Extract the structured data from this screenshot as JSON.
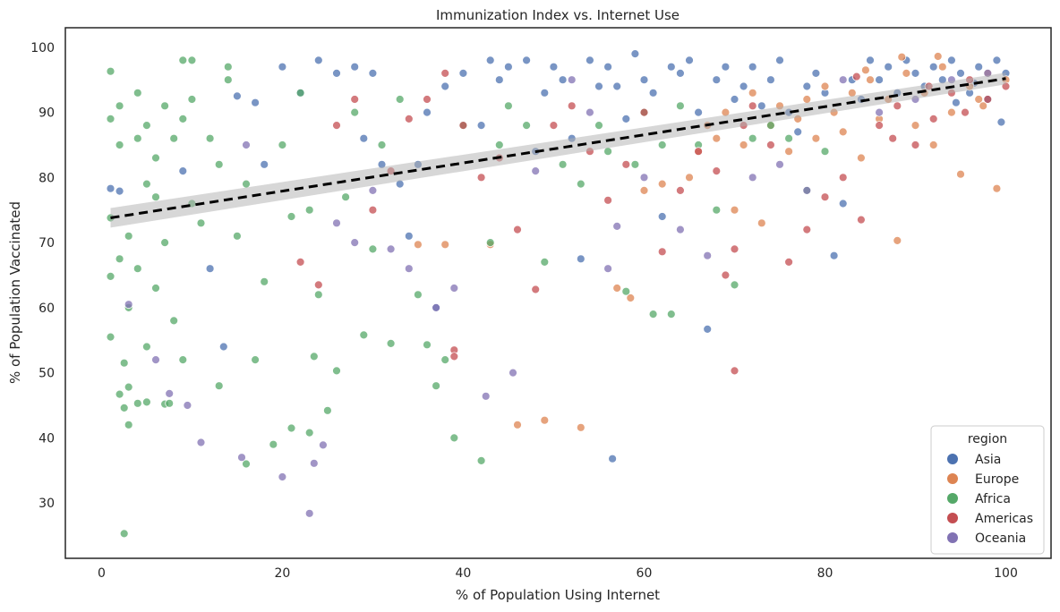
{
  "chart_data": {
    "type": "scatter",
    "title": "Immunization Index vs. Internet Use",
    "xlabel": "% of Population Using Internet",
    "ylabel": "% of Population Vaccinated",
    "xlim": [
      -4,
      105
    ],
    "ylim": [
      21.5,
      103
    ],
    "xticks": [
      0,
      20,
      40,
      60,
      80,
      100
    ],
    "yticks": [
      30,
      40,
      50,
      60,
      70,
      80,
      90,
      100
    ],
    "grid": false,
    "legend": {
      "title": "region",
      "placement": "lower-right"
    },
    "series": [
      {
        "name": "Asia",
        "color": "#4c72b0",
        "points": [
          [
            1,
            78.3
          ],
          [
            2,
            77.9
          ],
          [
            9,
            81
          ],
          [
            12,
            66
          ],
          [
            13.5,
            54
          ],
          [
            15,
            92.5
          ],
          [
            17,
            91.5
          ],
          [
            18,
            82
          ],
          [
            20,
            97
          ],
          [
            22,
            93
          ],
          [
            24,
            98
          ],
          [
            26,
            96
          ],
          [
            28,
            97
          ],
          [
            29,
            86
          ],
          [
            30,
            96
          ],
          [
            31,
            82
          ],
          [
            33,
            79
          ],
          [
            34,
            71
          ],
          [
            35,
            82
          ],
          [
            36,
            90
          ],
          [
            37,
            60
          ],
          [
            38,
            94
          ],
          [
            40,
            96
          ],
          [
            42,
            88
          ],
          [
            43,
            98
          ],
          [
            44,
            95
          ],
          [
            45,
            97
          ],
          [
            47,
            98
          ],
          [
            48,
            84
          ],
          [
            49,
            93
          ],
          [
            50,
            97
          ],
          [
            51,
            95
          ],
          [
            52,
            86
          ],
          [
            53,
            67.5
          ],
          [
            54,
            98
          ],
          [
            55,
            94
          ],
          [
            56,
            97
          ],
          [
            56.5,
            36.8
          ],
          [
            57,
            94
          ],
          [
            58,
            89
          ],
          [
            59,
            99
          ],
          [
            60,
            95
          ],
          [
            61,
            93
          ],
          [
            62,
            74
          ],
          [
            63,
            97
          ],
          [
            64,
            96
          ],
          [
            65,
            98
          ],
          [
            66,
            90
          ],
          [
            67,
            56.7
          ],
          [
            68,
            95
          ],
          [
            69,
            97
          ],
          [
            70,
            92
          ],
          [
            71,
            94
          ],
          [
            72,
            97
          ],
          [
            73,
            91
          ],
          [
            74,
            95
          ],
          [
            75,
            98
          ],
          [
            76,
            90
          ],
          [
            77,
            87
          ],
          [
            78,
            94
          ],
          [
            79,
            96
          ],
          [
            80,
            93
          ],
          [
            81,
            68
          ],
          [
            82,
            76
          ],
          [
            83,
            95
          ],
          [
            84,
            92
          ],
          [
            85,
            98
          ],
          [
            86,
            95
          ],
          [
            87,
            97
          ],
          [
            88,
            93
          ],
          [
            89,
            98
          ],
          [
            90,
            96
          ],
          [
            91,
            94
          ],
          [
            92,
            97
          ],
          [
            93,
            95
          ],
          [
            94,
            98
          ],
          [
            95,
            96
          ],
          [
            96,
            93
          ],
          [
            97,
            97
          ],
          [
            98,
            92
          ],
          [
            99,
            98
          ],
          [
            100,
            96
          ],
          [
            99.5,
            88.5
          ],
          [
            96.5,
            94.5
          ],
          [
            94.5,
            91.5
          ]
        ]
      },
      {
        "name": "Europe",
        "color": "#dd8452",
        "points": [
          [
            35,
            69.7
          ],
          [
            38,
            69.7
          ],
          [
            43,
            69.7
          ],
          [
            46,
            42
          ],
          [
            49,
            42.7
          ],
          [
            53,
            41.6
          ],
          [
            57,
            63
          ],
          [
            58.5,
            61.5
          ],
          [
            60,
            78
          ],
          [
            62,
            79
          ],
          [
            65,
            80
          ],
          [
            66,
            84
          ],
          [
            67,
            88
          ],
          [
            68,
            86
          ],
          [
            69,
            90
          ],
          [
            70,
            75
          ],
          [
            71,
            85
          ],
          [
            72,
            93
          ],
          [
            73,
            73
          ],
          [
            74,
            88
          ],
          [
            75,
            91
          ],
          [
            76,
            84
          ],
          [
            77,
            89
          ],
          [
            78,
            92
          ],
          [
            79,
            86
          ],
          [
            80,
            94
          ],
          [
            81,
            90
          ],
          [
            82,
            87
          ],
          [
            83,
            93
          ],
          [
            84,
            83
          ],
          [
            85,
            95
          ],
          [
            86,
            89
          ],
          [
            87,
            92
          ],
          [
            88,
            70.3
          ],
          [
            89,
            96
          ],
          [
            90,
            88
          ],
          [
            91,
            93
          ],
          [
            92,
            85
          ],
          [
            93,
            97
          ],
          [
            94,
            90
          ],
          [
            95,
            80.5
          ],
          [
            96,
            94
          ],
          [
            97,
            92
          ],
          [
            98,
            96
          ],
          [
            99,
            78.3
          ],
          [
            100,
            95
          ],
          [
            88.5,
            98.5
          ],
          [
            92.5,
            98.6
          ],
          [
            97.5,
            91
          ],
          [
            84.5,
            96.5
          ]
        ]
      },
      {
        "name": "Africa",
        "color": "#55a868",
        "points": [
          [
            1,
            96.3
          ],
          [
            1,
            89
          ],
          [
            1,
            73.8
          ],
          [
            1,
            64.8
          ],
          [
            1,
            55.5
          ],
          [
            2,
            91
          ],
          [
            2,
            85
          ],
          [
            2,
            46.7
          ],
          [
            2,
            67.5
          ],
          [
            2.5,
            25.3
          ],
          [
            2.5,
            51.5
          ],
          [
            2.5,
            44.6
          ],
          [
            3,
            47.8
          ],
          [
            3,
            42
          ],
          [
            3,
            71
          ],
          [
            3,
            60
          ],
          [
            4,
            93
          ],
          [
            4,
            86
          ],
          [
            4,
            66
          ],
          [
            4,
            45.3
          ],
          [
            5,
            88
          ],
          [
            5,
            79
          ],
          [
            5,
            54
          ],
          [
            5,
            45.5
          ],
          [
            6,
            83
          ],
          [
            6,
            77
          ],
          [
            6,
            63
          ],
          [
            7,
            45.2
          ],
          [
            7,
            91
          ],
          [
            7,
            70
          ],
          [
            7.5,
            45.3
          ],
          [
            8,
            86
          ],
          [
            8,
            58
          ],
          [
            9,
            98
          ],
          [
            9,
            89
          ],
          [
            9,
            52
          ],
          [
            10,
            92
          ],
          [
            10,
            76
          ],
          [
            10,
            98
          ],
          [
            11,
            73
          ],
          [
            12,
            86
          ],
          [
            13,
            82
          ],
          [
            13,
            48
          ],
          [
            14,
            97
          ],
          [
            14,
            95
          ],
          [
            15,
            71
          ],
          [
            16,
            79
          ],
          [
            16,
            36
          ],
          [
            17,
            52
          ],
          [
            18,
            64
          ],
          [
            19,
            39
          ],
          [
            20,
            85
          ],
          [
            21,
            74
          ],
          [
            21,
            41.5
          ],
          [
            22,
            93
          ],
          [
            23,
            75
          ],
          [
            23,
            40.8
          ],
          [
            23.5,
            52.5
          ],
          [
            24,
            62
          ],
          [
            25,
            44.2
          ],
          [
            26,
            50.3
          ],
          [
            27,
            77
          ],
          [
            28,
            90
          ],
          [
            29,
            55.8
          ],
          [
            30,
            69
          ],
          [
            31,
            85
          ],
          [
            32,
            54.5
          ],
          [
            33,
            92
          ],
          [
            35,
            62
          ],
          [
            36,
            54.3
          ],
          [
            37,
            48
          ],
          [
            38,
            52
          ],
          [
            39,
            40
          ],
          [
            40,
            88
          ],
          [
            42,
            36.5
          ],
          [
            43,
            70
          ],
          [
            44,
            85
          ],
          [
            45,
            91
          ],
          [
            47,
            88
          ],
          [
            49,
            67
          ],
          [
            51,
            82
          ],
          [
            53,
            79
          ],
          [
            55,
            88
          ],
          [
            56,
            84
          ],
          [
            58,
            62.5
          ],
          [
            59,
            82
          ],
          [
            60,
            90
          ],
          [
            61,
            59
          ],
          [
            62,
            85
          ],
          [
            63,
            59
          ],
          [
            64,
            91
          ],
          [
            66,
            85
          ],
          [
            68,
            75
          ],
          [
            70,
            63.5
          ],
          [
            72,
            86
          ],
          [
            74,
            88
          ],
          [
            76,
            86
          ],
          [
            78,
            78
          ],
          [
            80,
            84
          ]
        ]
      },
      {
        "name": "Americas",
        "color": "#c44e52",
        "points": [
          [
            22,
            67
          ],
          [
            24,
            63.5
          ],
          [
            26,
            88
          ],
          [
            28,
            92
          ],
          [
            30,
            75
          ],
          [
            32,
            81
          ],
          [
            34,
            89
          ],
          [
            36,
            92
          ],
          [
            38,
            96
          ],
          [
            39,
            53.5
          ],
          [
            39,
            52.5
          ],
          [
            40,
            88
          ],
          [
            42,
            80
          ],
          [
            44,
            83
          ],
          [
            46,
            72
          ],
          [
            48,
            62.8
          ],
          [
            50,
            88
          ],
          [
            52,
            91
          ],
          [
            54,
            84
          ],
          [
            56,
            76.5
          ],
          [
            58,
            82
          ],
          [
            60,
            90
          ],
          [
            62,
            68.6
          ],
          [
            64,
            78
          ],
          [
            66,
            84
          ],
          [
            68,
            81
          ],
          [
            69,
            65
          ],
          [
            70,
            50.3
          ],
          [
            70,
            69
          ],
          [
            71,
            88
          ],
          [
            72,
            91
          ],
          [
            74,
            85
          ],
          [
            76,
            67
          ],
          [
            78,
            72
          ],
          [
            80,
            77
          ],
          [
            82,
            80
          ],
          [
            84,
            73.5
          ],
          [
            86,
            88
          ],
          [
            88,
            91
          ],
          [
            90,
            85
          ],
          [
            92,
            89
          ],
          [
            94,
            93
          ],
          [
            96,
            95
          ],
          [
            98,
            92
          ],
          [
            100,
            94
          ],
          [
            83.5,
            95.5
          ],
          [
            87.5,
            86
          ],
          [
            91.5,
            94
          ],
          [
            95.5,
            90
          ]
        ]
      },
      {
        "name": "Oceania",
        "color": "#8172b3",
        "points": [
          [
            3,
            60.5
          ],
          [
            6,
            52
          ],
          [
            7.5,
            46.8
          ],
          [
            9.5,
            45
          ],
          [
            11,
            39.3
          ],
          [
            15.5,
            37
          ],
          [
            16,
            85
          ],
          [
            20,
            34
          ],
          [
            23,
            28.4
          ],
          [
            23.5,
            36.1
          ],
          [
            24.5,
            38.9
          ],
          [
            26,
            73
          ],
          [
            28,
            70
          ],
          [
            30,
            78
          ],
          [
            32,
            69
          ],
          [
            34,
            66
          ],
          [
            37,
            60
          ],
          [
            39,
            63
          ],
          [
            42.5,
            46.4
          ],
          [
            45.5,
            50
          ],
          [
            48,
            81
          ],
          [
            52,
            95
          ],
          [
            54,
            90
          ],
          [
            56,
            66
          ],
          [
            57,
            72.5
          ],
          [
            60,
            80
          ],
          [
            64,
            72
          ],
          [
            67,
            68
          ],
          [
            72,
            80
          ],
          [
            75,
            82
          ],
          [
            78,
            78
          ],
          [
            82,
            95
          ],
          [
            86,
            90
          ],
          [
            90,
            92
          ],
          [
            94,
            95
          ],
          [
            98,
            96
          ]
        ]
      }
    ],
    "trend_line": {
      "style": "dashed",
      "color": "#000000",
      "x": [
        1,
        100
      ],
      "y": [
        73.8,
        95.2
      ],
      "ci_halfwidth": [
        1.5,
        0.9
      ]
    }
  }
}
